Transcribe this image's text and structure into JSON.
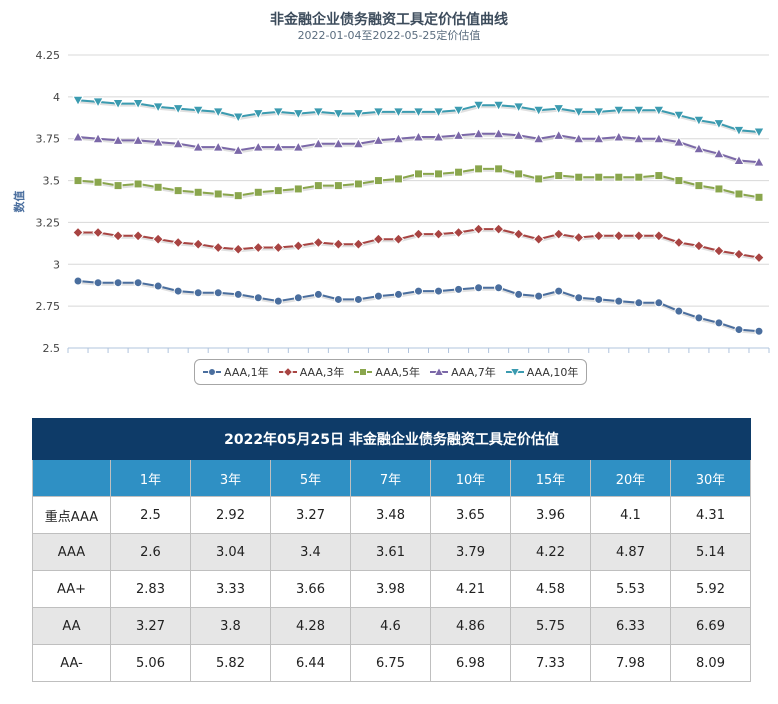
{
  "chart_data": {
    "type": "line",
    "title": "非金融企业债务融资工具定价估值曲线",
    "subtitle": "2022-01-04至2022-05-25定价估值",
    "ylabel": "数值",
    "xlabel": "",
    "ylim": [
      2.5,
      4.25
    ],
    "y_ticks": [
      "2.5",
      "2.75",
      "3",
      "3.25",
      "3.5",
      "3.75",
      "4",
      "4.25"
    ],
    "grid": true,
    "legend_position": "bottom",
    "series": [
      {
        "name": "AAA,1年",
        "color": "#4a6e9e",
        "marker": "circle",
        "values": [
          2.9,
          2.89,
          2.89,
          2.89,
          2.87,
          2.84,
          2.83,
          2.83,
          2.82,
          2.8,
          2.78,
          2.8,
          2.82,
          2.79,
          2.79,
          2.81,
          2.82,
          2.84,
          2.84,
          2.85,
          2.86,
          2.86,
          2.82,
          2.81,
          2.84,
          2.8,
          2.79,
          2.78,
          2.77,
          2.77,
          2.72,
          2.68,
          2.65,
          2.61,
          2.6
        ]
      },
      {
        "name": "AAA,3年",
        "color": "#a84442",
        "marker": "diamond",
        "values": [
          3.19,
          3.19,
          3.17,
          3.17,
          3.15,
          3.13,
          3.12,
          3.1,
          3.09,
          3.1,
          3.1,
          3.11,
          3.13,
          3.12,
          3.12,
          3.15,
          3.15,
          3.18,
          3.18,
          3.19,
          3.21,
          3.21,
          3.18,
          3.15,
          3.18,
          3.16,
          3.17,
          3.17,
          3.17,
          3.17,
          3.13,
          3.11,
          3.08,
          3.06,
          3.04
        ]
      },
      {
        "name": "AAA,5年",
        "color": "#8aa64d",
        "marker": "square",
        "values": [
          3.5,
          3.49,
          3.47,
          3.48,
          3.46,
          3.44,
          3.43,
          3.42,
          3.41,
          3.43,
          3.44,
          3.45,
          3.47,
          3.47,
          3.48,
          3.5,
          3.51,
          3.54,
          3.54,
          3.55,
          3.57,
          3.57,
          3.54,
          3.51,
          3.53,
          3.52,
          3.52,
          3.52,
          3.52,
          3.53,
          3.5,
          3.47,
          3.45,
          3.42,
          3.4
        ]
      },
      {
        "name": "AAA,7年",
        "color": "#7b68a8",
        "marker": "triangle",
        "values": [
          3.76,
          3.75,
          3.74,
          3.74,
          3.73,
          3.72,
          3.7,
          3.7,
          3.68,
          3.7,
          3.7,
          3.7,
          3.72,
          3.72,
          3.72,
          3.74,
          3.75,
          3.76,
          3.76,
          3.77,
          3.78,
          3.78,
          3.77,
          3.75,
          3.77,
          3.75,
          3.75,
          3.76,
          3.75,
          3.75,
          3.73,
          3.69,
          3.66,
          3.62,
          3.61
        ]
      },
      {
        "name": "AAA,10年",
        "color": "#3b9bb0",
        "marker": "triangle-down",
        "values": [
          3.98,
          3.97,
          3.96,
          3.96,
          3.94,
          3.93,
          3.92,
          3.91,
          3.88,
          3.9,
          3.91,
          3.9,
          3.91,
          3.9,
          3.9,
          3.91,
          3.91,
          3.91,
          3.91,
          3.92,
          3.95,
          3.95,
          3.94,
          3.92,
          3.93,
          3.91,
          3.91,
          3.92,
          3.92,
          3.92,
          3.89,
          3.86,
          3.84,
          3.8,
          3.79
        ]
      }
    ]
  },
  "table": {
    "title": "2022年05月25日 非金融企业债务融资工具定价估值",
    "corner": "",
    "headers": [
      "1年",
      "3年",
      "5年",
      "7年",
      "10年",
      "15年",
      "20年",
      "30年"
    ],
    "rows": [
      {
        "label": "重点AAA",
        "values": [
          "2.5",
          "2.92",
          "3.27",
          "3.48",
          "3.65",
          "3.96",
          "4.1",
          "4.31"
        ]
      },
      {
        "label": "AAA",
        "values": [
          "2.6",
          "3.04",
          "3.4",
          "3.61",
          "3.79",
          "4.22",
          "4.87",
          "5.14"
        ]
      },
      {
        "label": "AA+",
        "values": [
          "2.83",
          "3.33",
          "3.66",
          "3.98",
          "4.21",
          "4.58",
          "5.53",
          "5.92"
        ]
      },
      {
        "label": "AA",
        "values": [
          "3.27",
          "3.8",
          "4.28",
          "4.6",
          "4.86",
          "5.75",
          "6.33",
          "6.69"
        ]
      },
      {
        "label": "AA-",
        "values": [
          "5.06",
          "5.82",
          "6.44",
          "6.75",
          "6.98",
          "7.33",
          "7.98",
          "8.09"
        ]
      }
    ]
  }
}
